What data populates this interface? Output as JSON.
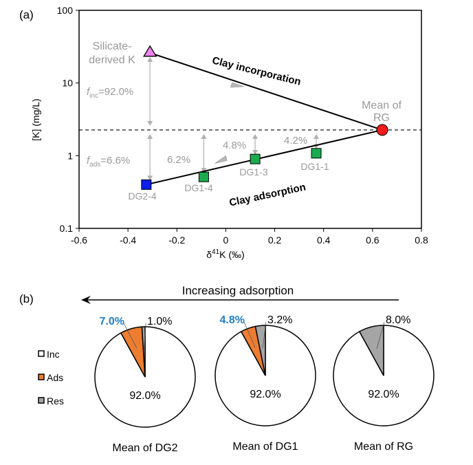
{
  "chart_data": [
    {
      "panel": "(a)",
      "type": "scatter",
      "xlabel_base": "δ",
      "xlabel_sup": "41",
      "xlabel_rest": "K (‰)",
      "ylabel": "[K] (mg/L)",
      "xlim": [
        -0.6,
        0.8
      ],
      "ylim": [
        0.1,
        100
      ],
      "yscale": "log",
      "xticks": [
        -0.6,
        -0.4,
        -0.2,
        0,
        0.2,
        0.4,
        0.6,
        0.8
      ],
      "xtick_labels": [
        "-0.6",
        "-0.4",
        "-0.2",
        "0",
        "0.2",
        "0.4",
        "0.6",
        "0.8"
      ],
      "yticks": [
        0.1,
        1,
        10,
        100
      ],
      "ytick_labels": [
        "0.1",
        "1",
        "10",
        "100"
      ],
      "grid": false,
      "reference_line_y": 2.26,
      "points": [
        {
          "name": "Silicate-derived K",
          "label_line1": "Silicate-",
          "label_line2": "derived K",
          "x": -0.31,
          "y": 26,
          "marker": "triangle",
          "color": "#ee82ee"
        },
        {
          "name": "Mean of RG",
          "label_line1": "Mean of",
          "label_line2": "RG",
          "x": 0.64,
          "y": 2.26,
          "marker": "circle",
          "color": "#ee1c1c"
        },
        {
          "name": "DG1-1",
          "label_line1": "DG1-1",
          "x": 0.37,
          "y": 1.08,
          "marker": "square",
          "color": "#1aab4f"
        },
        {
          "name": "DG1-3",
          "label_line1": "DG1-3",
          "x": 0.12,
          "y": 0.9,
          "marker": "square",
          "color": "#1aab4f"
        },
        {
          "name": "DG1-4",
          "label_line1": "DG1-4",
          "x": -0.09,
          "y": 0.51,
          "marker": "square",
          "color": "#1aab4f"
        },
        {
          "name": "DG2-4",
          "label_line1": "DG2-4",
          "x": -0.325,
          "y": 0.4,
          "marker": "square",
          "color": "#0a1fe8"
        }
      ],
      "lines": [
        {
          "name": "Clay incorporation",
          "from": [
            -0.31,
            26
          ],
          "to": [
            0.64,
            2.26
          ],
          "arrow_at": [
            0.05,
            9.5
          ]
        },
        {
          "name": "Clay adsorption",
          "from": [
            0.64,
            2.26
          ],
          "to": [
            -0.325,
            0.4
          ],
          "arrow_at": [
            -0.02,
            0.82
          ]
        }
      ],
      "annotations": {
        "clay_incorporation": "Clay incorporation",
        "clay_adsorption": "Clay adsorption",
        "f_inc_symbol": "f",
        "f_inc_sub": "inc",
        "f_inc_value": "=92.0%",
        "f_ads_symbol": "f",
        "f_ads_sub": "ads",
        "f_ads_value": "=6.6%",
        "dg1_4_pct": "6.2%",
        "dg1_3_pct": "4.8%",
        "dg1_1_pct": "4.2%"
      },
      "vertical_arrows": [
        {
          "x": -0.31,
          "y_from": 26,
          "y_to": 2.26
        },
        {
          "x": -0.31,
          "y_from": 2.26,
          "y_to": 0.4
        },
        {
          "x": -0.09,
          "y_from": 2.26,
          "y_to": 0.51
        },
        {
          "x": 0.12,
          "y_from": 2.26,
          "y_to": 0.9
        },
        {
          "x": 0.37,
          "y_from": 2.26,
          "y_to": 1.08
        }
      ]
    },
    {
      "panel": "(b)",
      "type": "pie",
      "arrow_label": "Increasing adsorption",
      "legend": [
        {
          "name": "Inc",
          "color": "#ffffff"
        },
        {
          "name": "Ads",
          "color": "#ed7d31"
        },
        {
          "name": "Res",
          "color": "#a5a5a5"
        }
      ],
      "pies": [
        {
          "title": "Mean of DG2",
          "slices": [
            {
              "name": "Inc",
              "value": 92.0
            },
            {
              "name": "Ads",
              "value": 7.0
            },
            {
              "name": "Res",
              "value": 1.0
            }
          ],
          "labels": {
            "inc": "92.0%",
            "ads": "7.0%",
            "res": "1.0%"
          }
        },
        {
          "title": "Mean of DG1",
          "slices": [
            {
              "name": "Inc",
              "value": 92.0
            },
            {
              "name": "Ads",
              "value": 4.8
            },
            {
              "name": "Res",
              "value": 3.2
            }
          ],
          "labels": {
            "inc": "92.0%",
            "ads": "4.8%",
            "res": "3.2%"
          }
        },
        {
          "title": "Mean of RG",
          "slices": [
            {
              "name": "Inc",
              "value": 92.0
            },
            {
              "name": "Ads",
              "value": 0
            },
            {
              "name": "Res",
              "value": 8.0
            }
          ],
          "labels": {
            "inc": "92.0%",
            "ads": "",
            "res": "8.0%"
          }
        }
      ]
    }
  ],
  "colors": {
    "annotation_gray": "#999999",
    "highlight_blue": "#1f7fc7",
    "axis": "#000000"
  }
}
